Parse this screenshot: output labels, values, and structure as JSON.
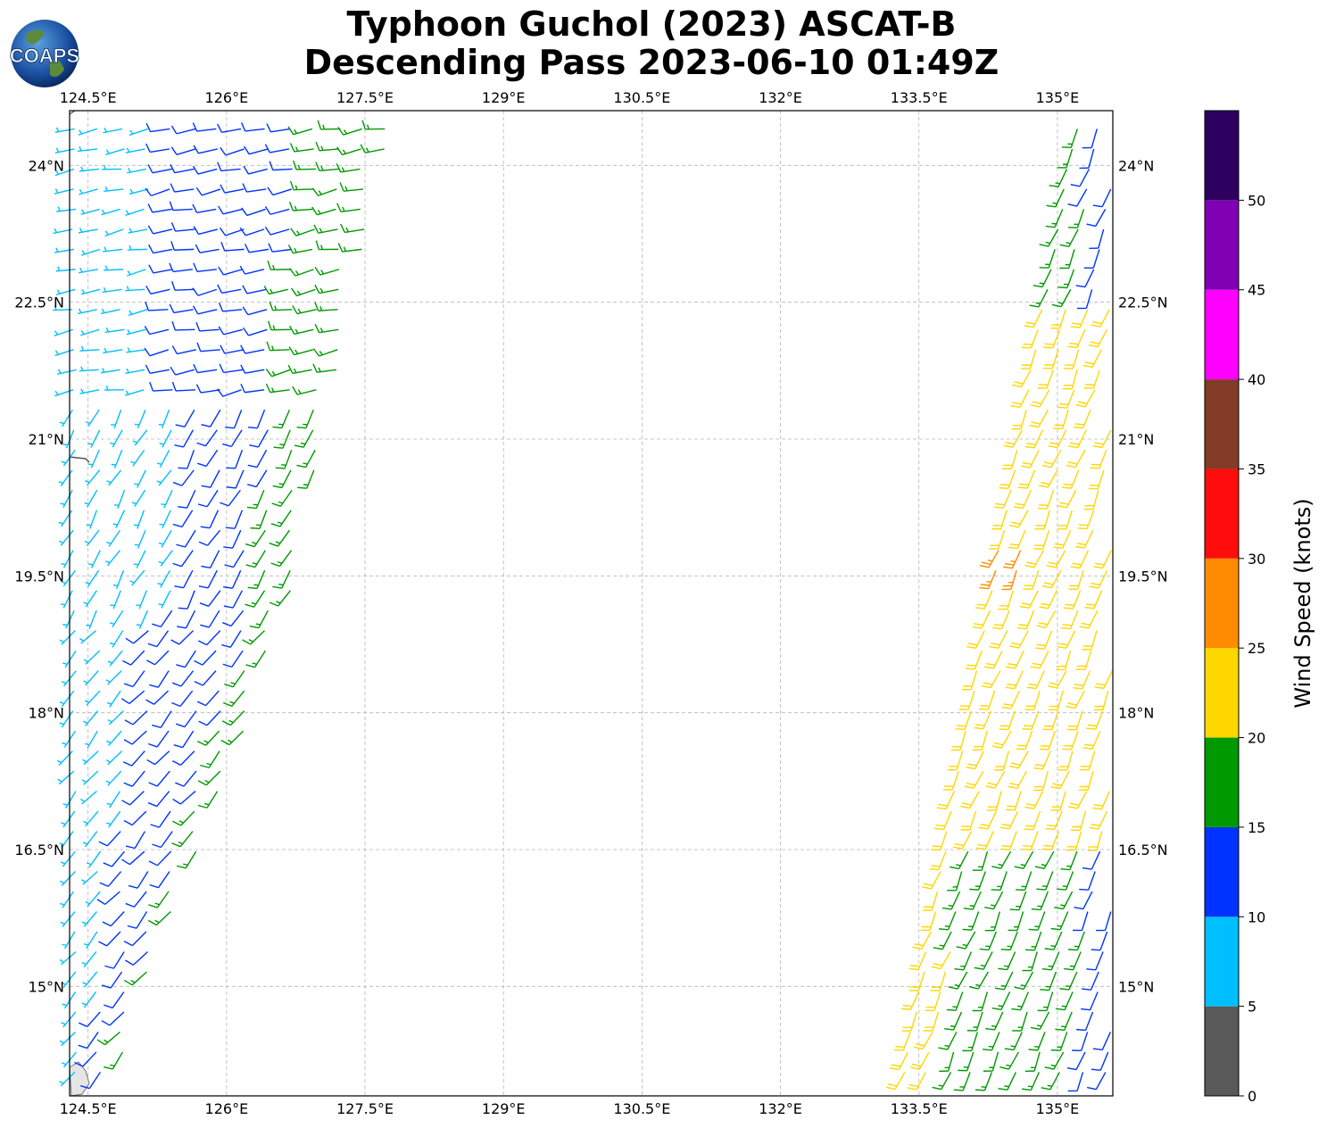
{
  "title": {
    "line1": "Typhoon Guchol (2023) ASCAT-B",
    "line2": "Descending Pass 2023-06-10 01:49Z"
  },
  "logo": {
    "text": "COAPS",
    "icon": "globe-logo-icon"
  },
  "map": {
    "lon_range": [
      124.3,
      135.6
    ],
    "lat_range": [
      13.8,
      24.6
    ],
    "lon_ticks": [
      "124.5°E",
      "126°E",
      "127.5°E",
      "129°E",
      "130.5°E",
      "132°E",
      "133.5°E",
      "135°E"
    ],
    "lon_tick_values": [
      124.5,
      126,
      127.5,
      129,
      130.5,
      132,
      133.5,
      135
    ],
    "lat_ticks": [
      "24°N",
      "22.5°N",
      "21°N",
      "19.5°N",
      "18°N",
      "16.5°N",
      "15°N"
    ],
    "lat_tick_values": [
      24,
      22.5,
      21,
      19.5,
      18,
      16.5,
      15
    ],
    "grid": true
  },
  "colorbar": {
    "label": "Wind Speed (knots)",
    "ticks": [
      "0",
      "5",
      "10",
      "15",
      "20",
      "25",
      "30",
      "35",
      "40",
      "45",
      "50"
    ],
    "bins": [
      {
        "min": 0,
        "max": 5,
        "color": "#595959"
      },
      {
        "min": 5,
        "max": 10,
        "color": "#00bfff"
      },
      {
        "min": 10,
        "max": 15,
        "color": "#0033ff"
      },
      {
        "min": 15,
        "max": 20,
        "color": "#009900"
      },
      {
        "min": 20,
        "max": 25,
        "color": "#ffd700"
      },
      {
        "min": 25,
        "max": 30,
        "color": "#ff8c00"
      },
      {
        "min": 30,
        "max": 35,
        "color": "#ff0d0d"
      },
      {
        "min": 35,
        "max": 40,
        "color": "#823c28"
      },
      {
        "min": 40,
        "max": 45,
        "color": "#ff00ff"
      },
      {
        "min": 45,
        "max": 50,
        "color": "#8000b3"
      },
      {
        "min": 50,
        "max": 55,
        "color": "#2d0060"
      }
    ]
  },
  "swaths": {
    "west": {
      "lon_range": [
        124.3,
        127.8
      ],
      "lat_range": [
        13.8,
        24.4
      ],
      "dominant_speeds_knots": [
        7,
        12,
        17
      ]
    },
    "east": {
      "lon_range": [
        133.3,
        135.6
      ],
      "lat_range": [
        13.8,
        24.4
      ],
      "dominant_speeds_knots": [
        12,
        17,
        22,
        27
      ]
    }
  }
}
